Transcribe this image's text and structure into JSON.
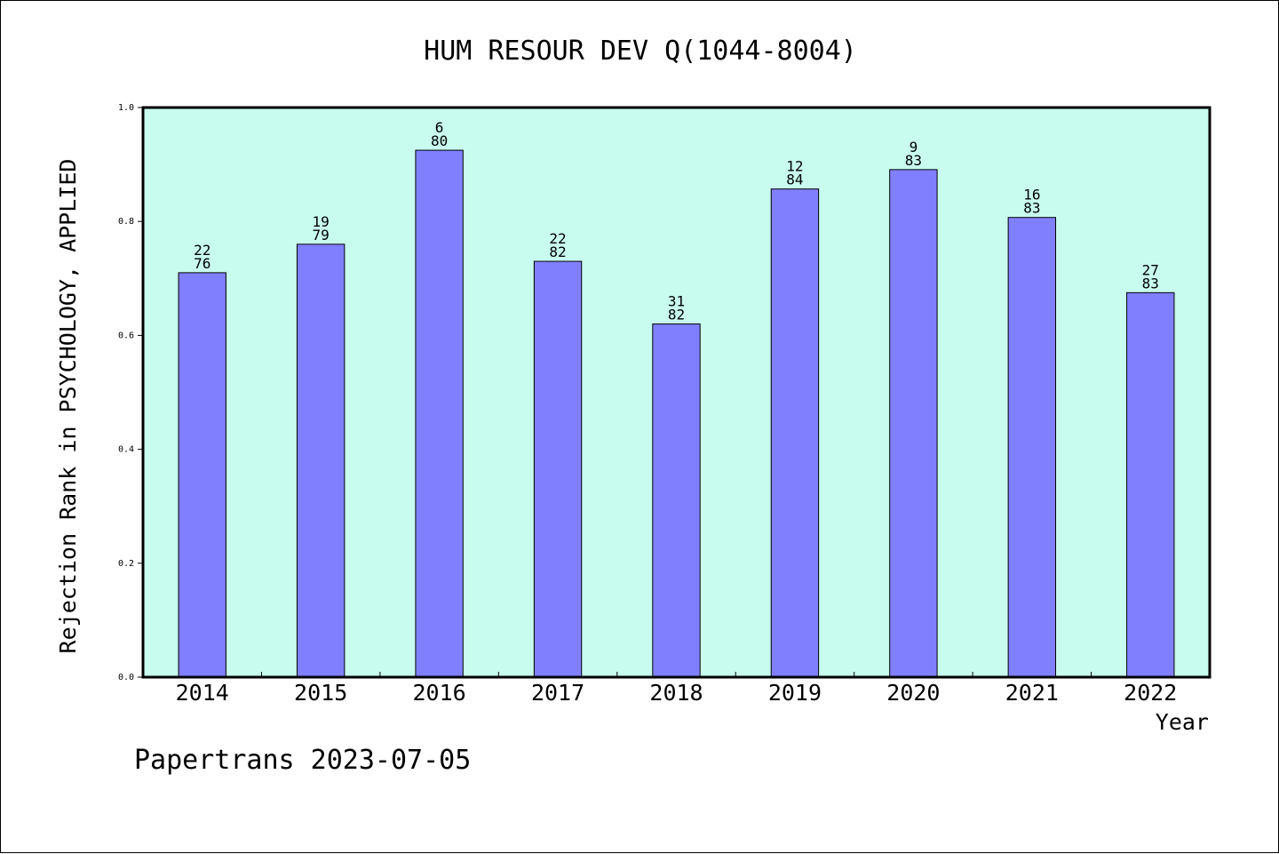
{
  "chart_data": {
    "type": "bar",
    "title": "HUM RESOUR DEV Q(1044-8004)",
    "ylabel": "Rejection Rank in PSYCHOLOGY, APPLIED",
    "xlabel": "Year",
    "categories": [
      "2014",
      "2015",
      "2016",
      "2017",
      "2018",
      "2019",
      "2020",
      "2021",
      "2022"
    ],
    "values": [
      0.71,
      0.76,
      0.925,
      0.73,
      0.62,
      0.857,
      0.891,
      0.807,
      0.675
    ],
    "rank": [
      "22",
      "19",
      "6",
      "22",
      "31",
      "12",
      "9",
      "16",
      "27"
    ],
    "total": [
      "76",
      "79",
      "80",
      "82",
      "82",
      "84",
      "83",
      "83",
      "83"
    ],
    "yticks": [
      "0.0",
      "0.2",
      "0.4",
      "0.6",
      "0.8",
      "1.0"
    ],
    "ylim": [
      0,
      1
    ],
    "grid": false,
    "legend": "none",
    "colors": {
      "plot_background": "#c8fcee",
      "bar_fill": "#8080ff",
      "bar_stroke": "#000000"
    }
  },
  "footer": "Papertrans 2023-07-05"
}
